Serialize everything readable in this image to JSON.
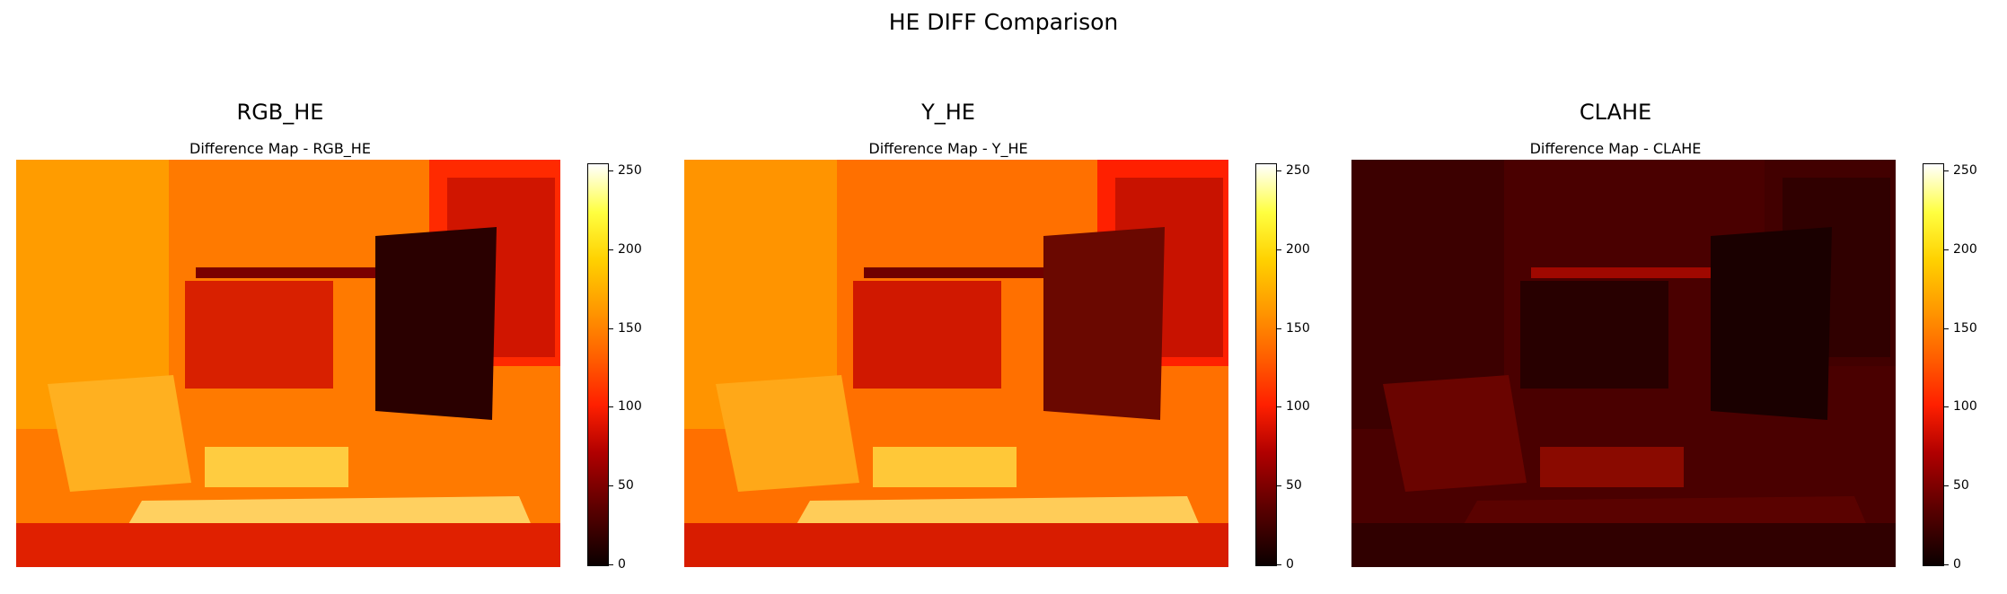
{
  "figure": {
    "suptitle": "HE DIFF Comparison"
  },
  "chart_data": [
    {
      "type": "heatmap",
      "title": "RGB_HE",
      "subtitle": "Difference Map - RGB_HE",
      "colormap": "hot",
      "colorbar": {
        "range": [
          0,
          255
        ],
        "ticks": [
          "0",
          "50",
          "100",
          "150",
          "200",
          "250"
        ]
      },
      "intensity": "high",
      "base_color": "#ff8a00"
    },
    {
      "type": "heatmap",
      "title": "Y_HE",
      "subtitle": "Difference Map - Y_HE",
      "colormap": "hot",
      "colorbar": {
        "range": [
          0,
          255
        ],
        "ticks": [
          "0",
          "50",
          "100",
          "150",
          "200",
          "250"
        ]
      },
      "intensity": "high",
      "base_color": "#ff8000"
    },
    {
      "type": "heatmap",
      "title": "CLAHE",
      "subtitle": "Difference Map - CLAHE",
      "colormap": "hot",
      "colorbar": {
        "range": [
          0,
          255
        ],
        "ticks": [
          "0",
          "50",
          "100",
          "150",
          "200",
          "250"
        ]
      },
      "intensity": "low",
      "base_color": "#5a0000"
    }
  ]
}
